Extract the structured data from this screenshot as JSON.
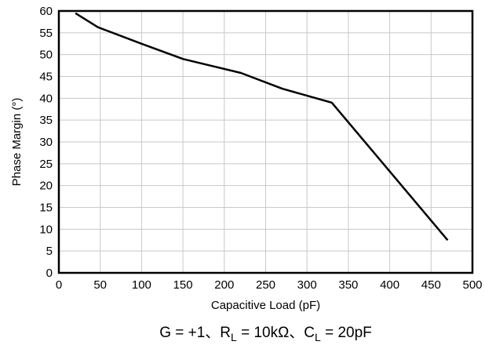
{
  "chart_data": {
    "type": "line",
    "xlabel": "Capacitive Load (pF)",
    "ylabel": "Phase Margin (°)",
    "xlim": [
      0,
      500
    ],
    "ylim": [
      0,
      60
    ],
    "x_ticks": [
      0,
      50,
      100,
      150,
      200,
      250,
      300,
      350,
      400,
      450,
      500
    ],
    "y_ticks": [
      0,
      5,
      10,
      15,
      20,
      25,
      30,
      35,
      40,
      45,
      50,
      55,
      60
    ],
    "grid": true,
    "series": [
      {
        "x": [
          20,
          47,
          100,
          150,
          220,
          270,
          330,
          470
        ],
        "y": [
          59.5,
          56.3,
          52.5,
          49,
          45.8,
          42.2,
          39,
          7.5
        ]
      }
    ],
    "condition": {
      "text_1": "G = +1、R",
      "sub_1": "L",
      "text_2": " = 10kΩ、C",
      "sub_2": "L",
      "text_3": " = 20pF"
    }
  },
  "colors": {
    "line": "#000000",
    "grid": "#c8c8c8",
    "frame": "#000000"
  }
}
